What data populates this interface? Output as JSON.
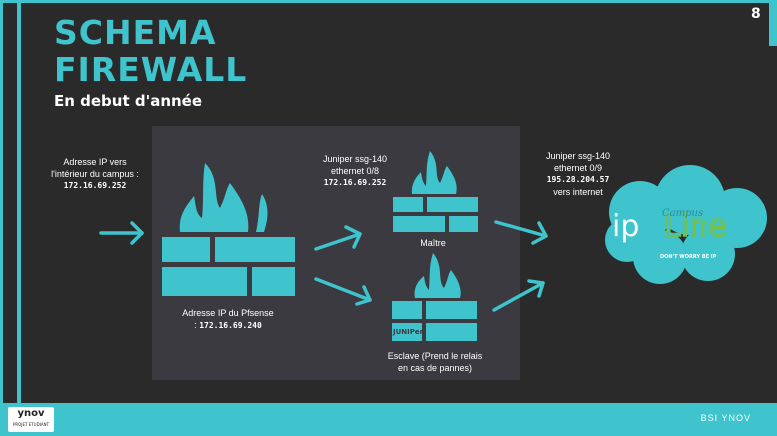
{
  "slide": {
    "page_number": "8",
    "title_line1": "SCHEMA",
    "title_line2": "FIREWALL",
    "subtitle": "En debut d'année"
  },
  "labels": {
    "campus_ip_line1": "Adresse IP vers",
    "campus_ip_line2": "l'intérieur du campus :",
    "campus_ip_value": "172.16.69.252",
    "pfsense_line1": "Adresse IP du Pfsense",
    "pfsense_prefix": ":",
    "pfsense_value": "172.16.69.240",
    "juniper_master_line1": "Juniper ssg-140",
    "juniper_master_line2": "ethernet 0/8",
    "juniper_master_value": "172.16.69.252",
    "master_label": "Maître",
    "juniper_internet_line1": "Juniper ssg-140",
    "juniper_internet_line2": "ethernet 0/9",
    "juniper_internet_value": "195.28.204.57",
    "juniper_internet_line4": "vers internet",
    "slave_line1": "Esclave (Prend le relais",
    "slave_line2": "en cas de pannes)"
  },
  "cloud": {
    "brand_left": "ip",
    "brand_right": "Line",
    "small_text": "Campus",
    "tagline": "DON'T WORRY BE IP"
  },
  "firewall_logo_text": "JUNIPer",
  "footer": {
    "logo_main": "ynov",
    "logo_sub": "PROJET ETUDIANT",
    "right_text": "BSI YNOV"
  },
  "colors": {
    "accent": "#3fc3cc",
    "background": "#2b2a2a",
    "panel": "#3a3a40"
  }
}
